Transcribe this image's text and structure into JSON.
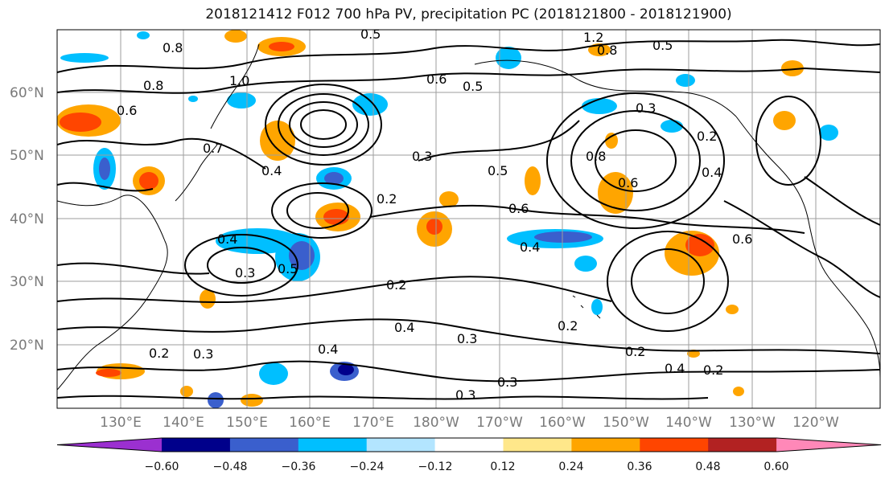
{
  "title": "2018121412 F012 700 hPa PV, precipitation PC (2018121800 - 2018121900)",
  "map": {
    "lat_labels": [
      "60°N",
      "50°N",
      "40°N",
      "30°N",
      "20°N"
    ],
    "lon_labels": [
      "130°E",
      "140°E",
      "150°E",
      "160°E",
      "170°E",
      "180°W",
      "170°W",
      "160°W",
      "150°W",
      "140°W",
      "130°W",
      "120°W"
    ],
    "contour_labels": [
      "0.5",
      "1.2",
      "0.8",
      "0.5",
      "0.6",
      "0.5",
      "0.8",
      "1.0",
      "0.8",
      "0.6",
      "0.7",
      "0.4",
      "0.3",
      "0.5",
      "0.2",
      "0.6",
      "0.4",
      "0.3",
      "0.5",
      "0.2",
      "0.3",
      "0.2",
      "0.4",
      "0.3",
      "0.4",
      "0.3",
      "0.2",
      "0.2",
      "0.4",
      "0.2",
      "0.3",
      "0.6",
      "0.2",
      "0.3",
      "0.4",
      "0.8",
      "0.6",
      "0.4"
    ]
  },
  "colorbar": {
    "ticks": [
      "−0.60",
      "−0.48",
      "−0.36",
      "−0.24",
      "−0.12",
      "0.12",
      "0.24",
      "0.36",
      "0.48",
      "0.60"
    ],
    "colors": [
      "#9b30d0",
      "#00008b",
      "#3a5fcd",
      "#00bfff",
      "#b3e5ff",
      "#ffffff",
      "#ffe78a",
      "#ffa500",
      "#ff4500",
      "#b22222",
      "#ff88b8"
    ]
  }
}
